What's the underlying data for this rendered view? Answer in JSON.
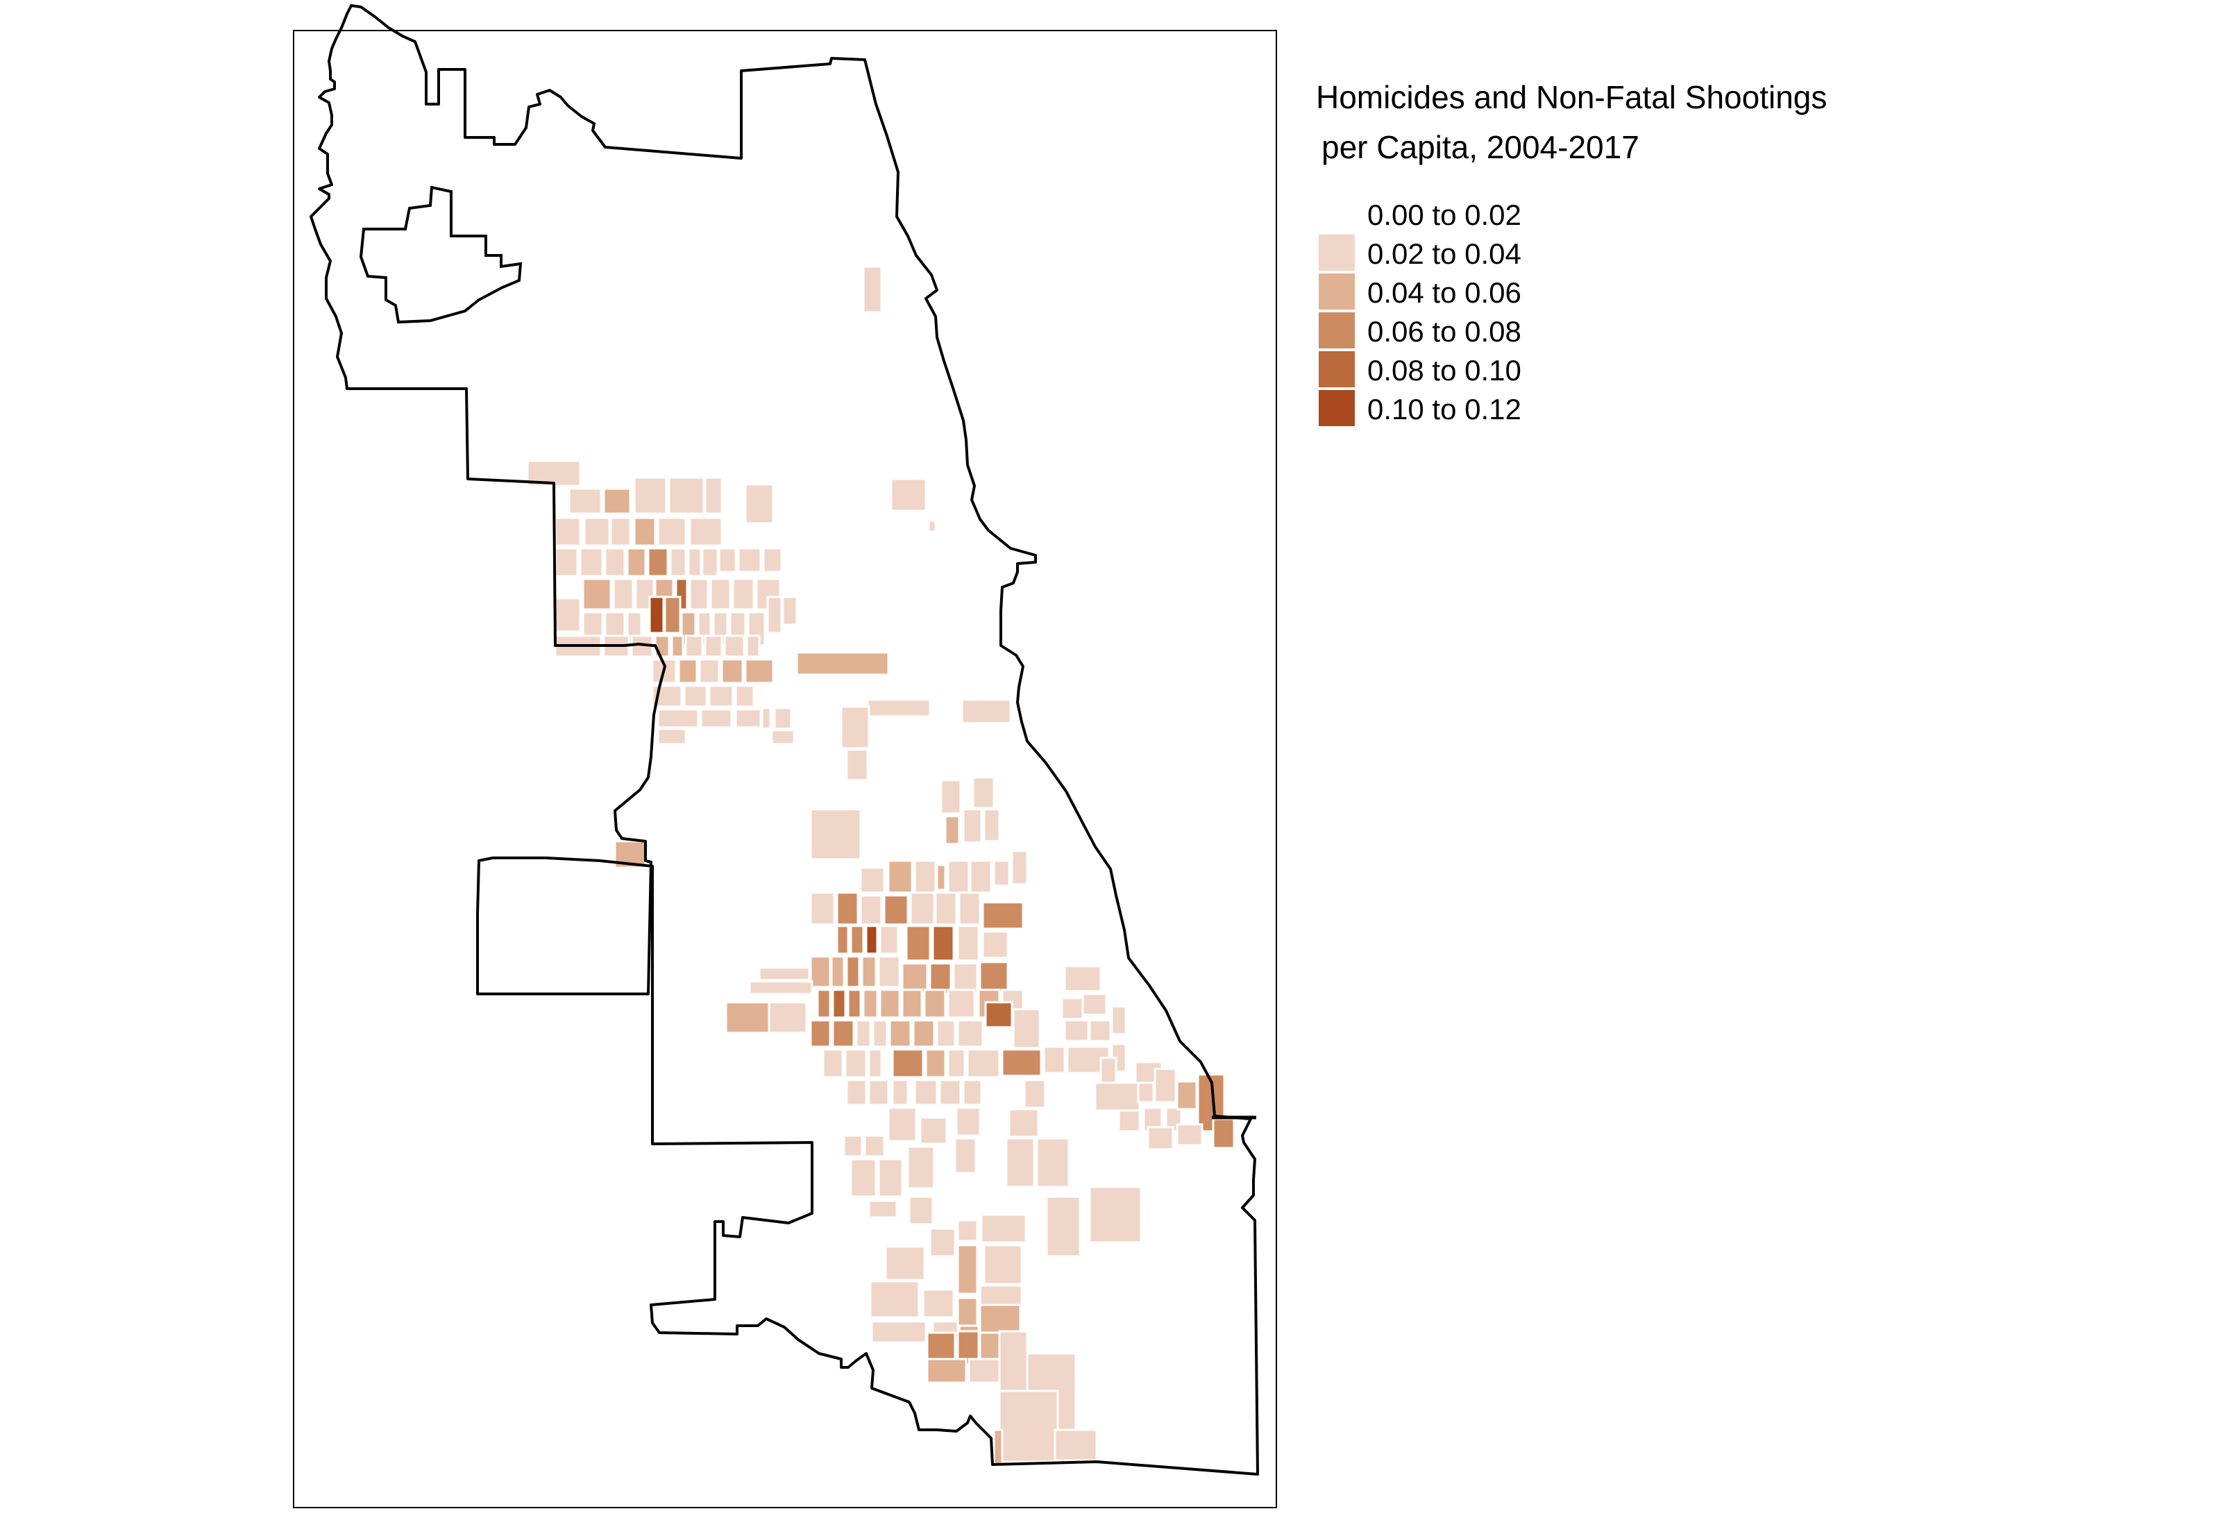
{
  "map": {
    "legend": {
      "title_line1": "Homicides and Non-Fatal Shootings",
      "title_line2": "per Capita, 2004-2017",
      "items": [
        {
          "label": "0.00 to 0.02",
          "color": "#ffffff"
        },
        {
          "label": "0.02 to 0.04",
          "color": "#efd6c8"
        },
        {
          "label": "0.04 to 0.06",
          "color": "#e0b293"
        },
        {
          "label": "0.06 to 0.08",
          "color": "#cd8b62"
        },
        {
          "label": "0.08 to 0.10",
          "color": "#bb6a3c"
        },
        {
          "label": "0.10 to 0.12",
          "color": "#a9481c"
        }
      ]
    },
    "colors": {
      "boundary": "#000000",
      "frame": "#000000",
      "tract_border": "#ffffff",
      "background": "#ffffff"
    }
  }
}
